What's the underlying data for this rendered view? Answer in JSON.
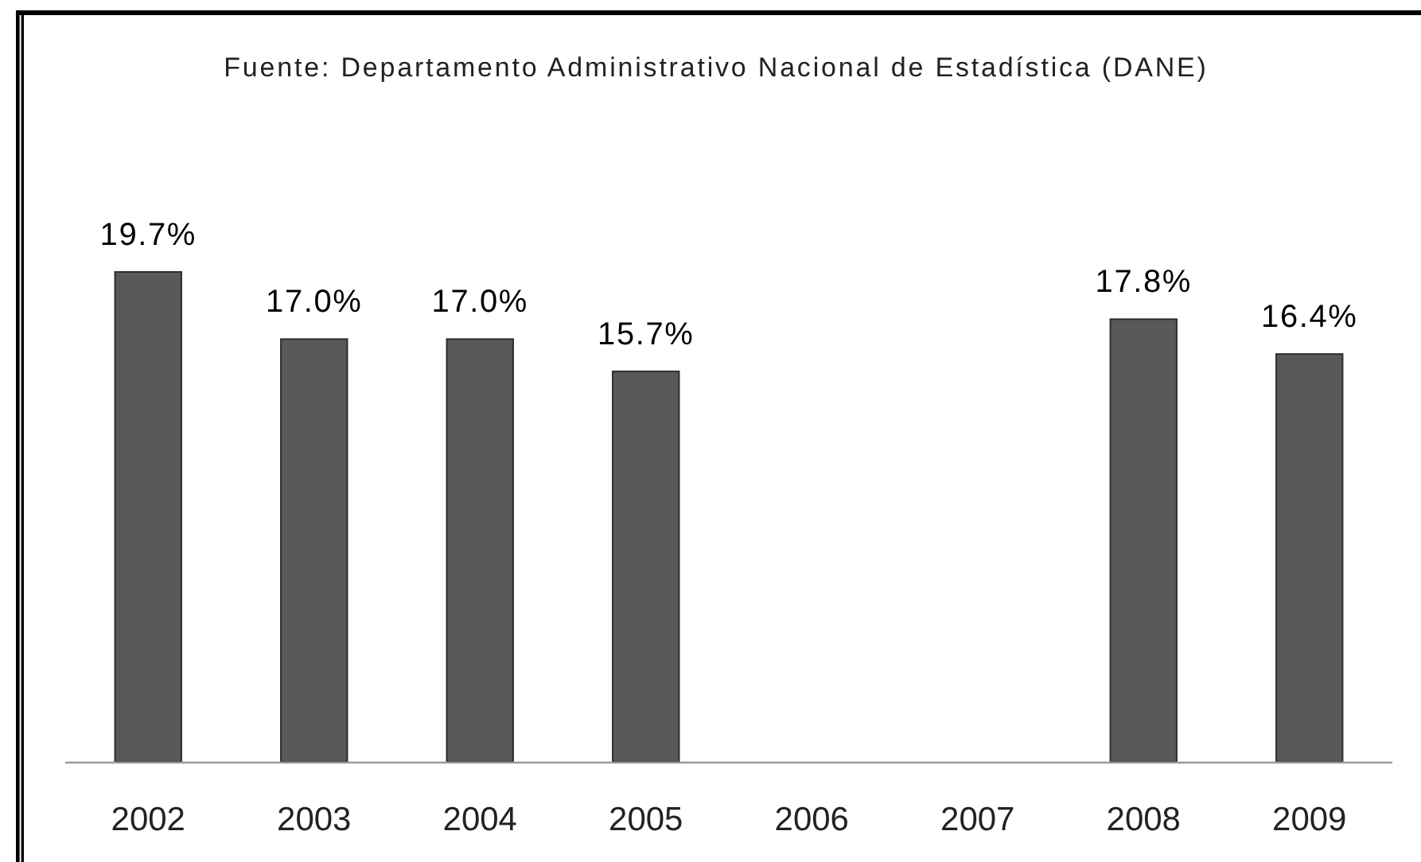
{
  "chart_data": {
    "type": "bar",
    "annotations": [
      "Fuente: Departamento Administrativo Nacional de Estadística (DANE)"
    ],
    "categories": [
      "2002",
      "2003",
      "2004",
      "2005",
      "2006",
      "2007",
      "2008",
      "2009"
    ],
    "values": [
      19.7,
      17.0,
      17.0,
      15.7,
      null,
      null,
      17.8,
      16.4
    ],
    "value_labels": [
      "19.7%",
      "17.0%",
      "17.0%",
      "15.7%",
      null,
      null,
      "17.8%",
      "16.4%"
    ],
    "color": "#595959"
  }
}
